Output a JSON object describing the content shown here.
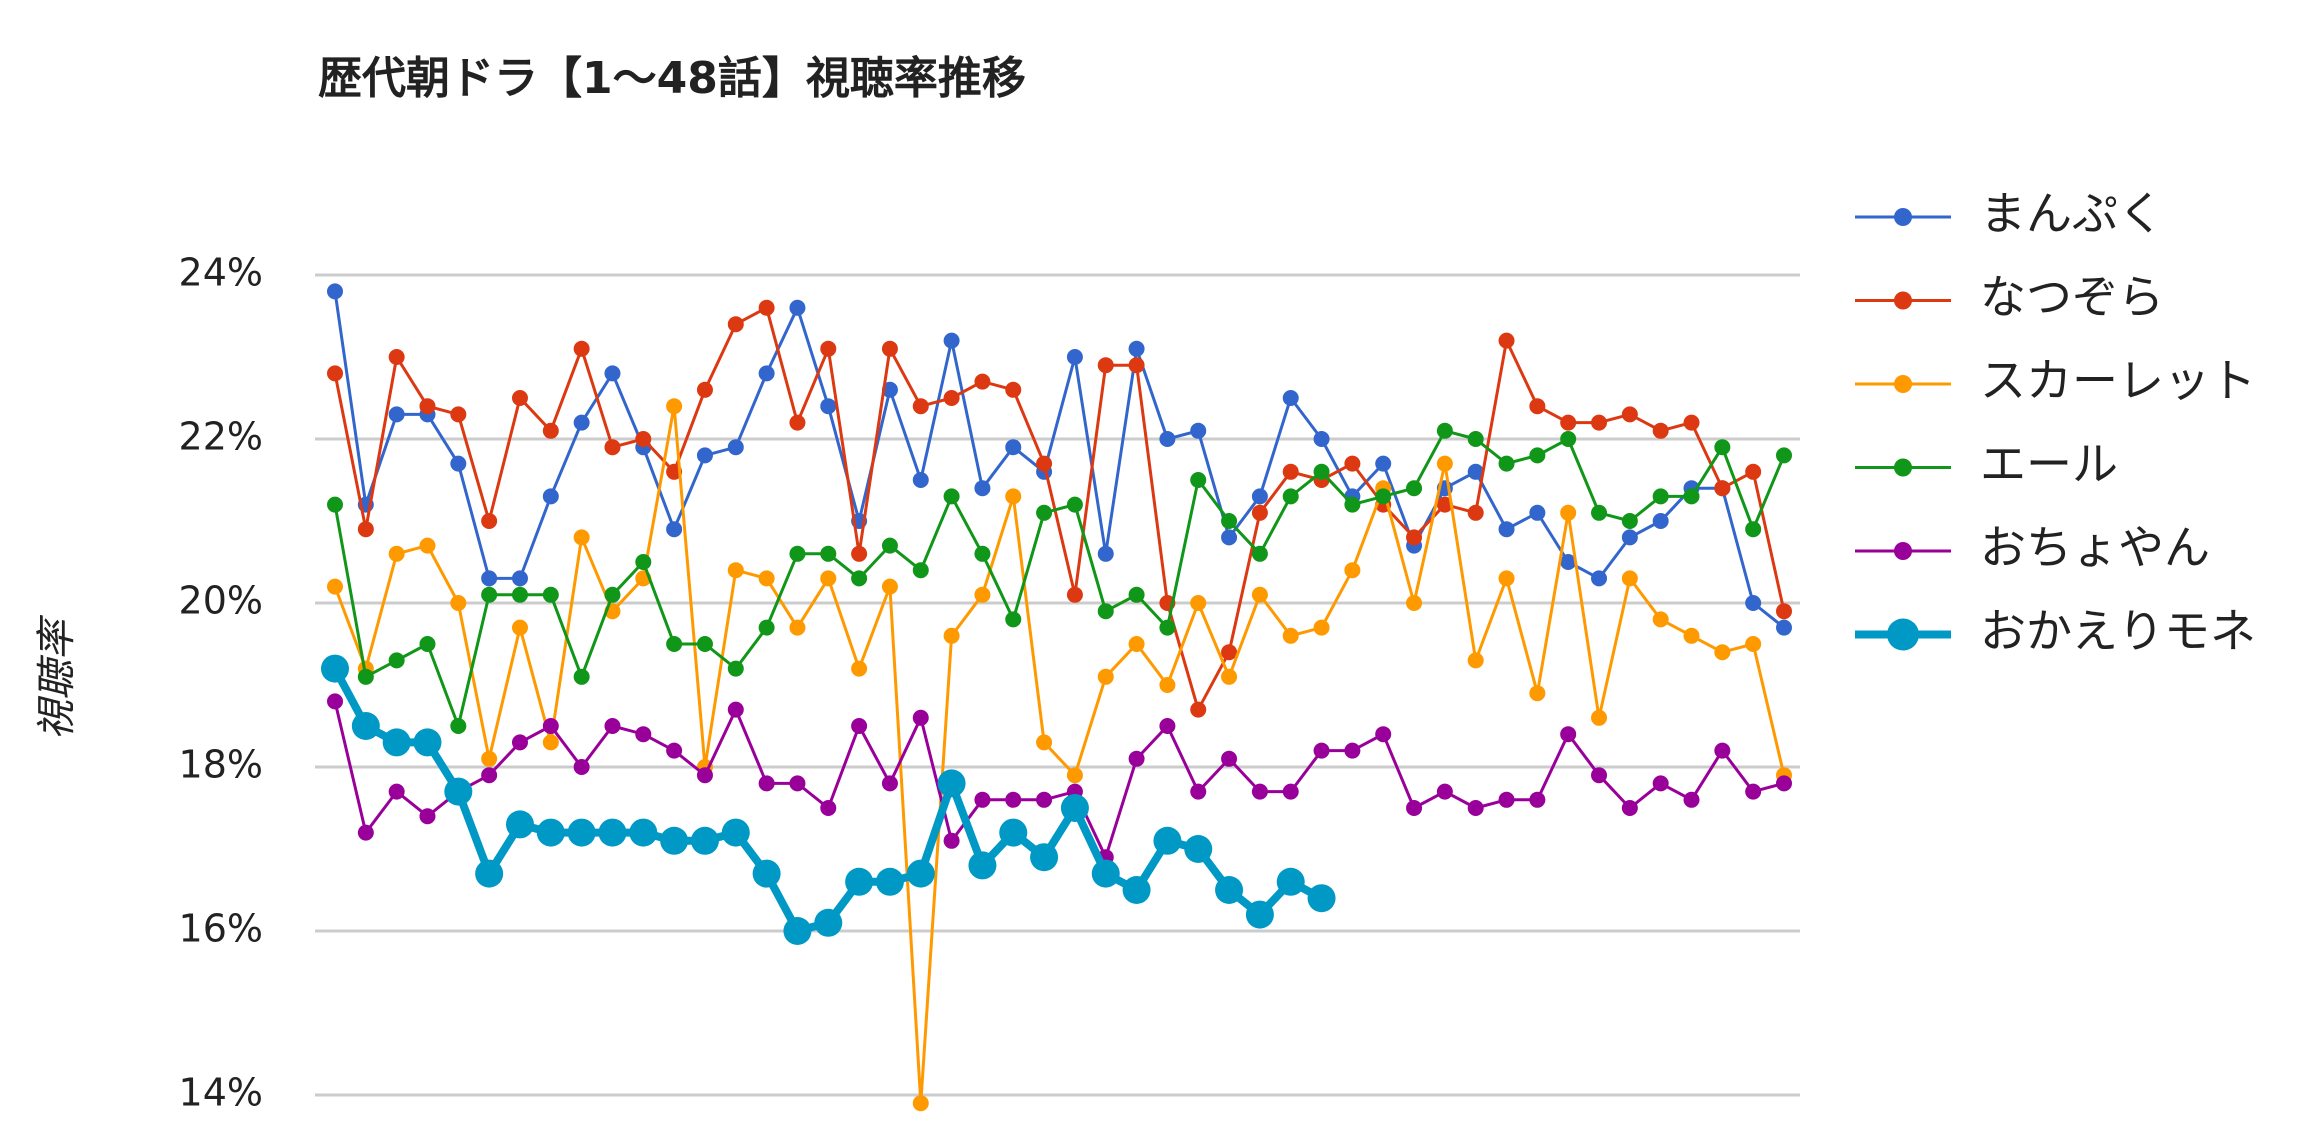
{
  "chart_data": {
    "type": "line",
    "title": "歴代朝ドラ【1〜48話】視聴率推移",
    "y_label": "視聴率",
    "ylim": [
      14,
      24
    ],
    "yticks": [
      {
        "value": 14,
        "label": "14%"
      },
      {
        "value": 16,
        "label": "16%"
      },
      {
        "value": 18,
        "label": "18%"
      },
      {
        "value": 20,
        "label": "20%"
      },
      {
        "value": 22,
        "label": "22%"
      },
      {
        "value": 24,
        "label": "24%"
      }
    ],
    "grid": true,
    "legend": "right",
    "series": [
      {
        "name": "まんぷく",
        "color": "#3366cc",
        "values": [
          23.8,
          21.2,
          22.3,
          22.3,
          21.7,
          20.3,
          20.3,
          21.3,
          22.2,
          22.8,
          21.9,
          20.9,
          21.8,
          21.9,
          22.8,
          23.6,
          22.4,
          21.0,
          22.6,
          21.5,
          23.2,
          21.4,
          21.9,
          21.6,
          23.0,
          20.6,
          23.1,
          22.0,
          22.1,
          20.8,
          21.3,
          22.5,
          22.0,
          21.3,
          21.7,
          20.7,
          21.4,
          21.6,
          20.9,
          21.1,
          20.5,
          20.3,
          20.8,
          21.0,
          21.4,
          21.4,
          20.0,
          19.7
        ]
      },
      {
        "name": "なつぞら",
        "color": "#dc3912",
        "values": [
          22.8,
          20.9,
          23.0,
          22.4,
          22.3,
          21.0,
          22.5,
          22.1,
          23.1,
          21.9,
          22.0,
          21.6,
          22.6,
          23.4,
          23.6,
          22.2,
          23.1,
          20.6,
          23.1,
          22.4,
          22.5,
          22.7,
          22.6,
          21.7,
          20.1,
          22.9,
          22.9,
          20.0,
          18.7,
          19.4,
          21.1,
          21.6,
          21.5,
          21.7,
          21.2,
          20.8,
          21.2,
          21.1,
          23.2,
          22.4,
          22.2,
          22.2,
          22.3,
          22.1,
          22.2,
          21.4,
          21.6,
          19.9
        ]
      },
      {
        "name": "スカーレット",
        "color": "#ff9900",
        "values": [
          20.2,
          19.2,
          20.6,
          20.7,
          20.0,
          18.1,
          19.7,
          18.3,
          20.8,
          19.9,
          20.3,
          22.4,
          18.0,
          20.4,
          20.3,
          19.7,
          20.3,
          19.2,
          20.2,
          13.9,
          19.6,
          20.1,
          21.3,
          18.3,
          17.9,
          19.1,
          19.5,
          19.0,
          20.0,
          19.1,
          20.1,
          19.6,
          19.7,
          20.4,
          21.4,
          20.0,
          21.7,
          19.3,
          20.3,
          18.9,
          21.1,
          18.6,
          20.3,
          19.8,
          19.6,
          19.4,
          19.5,
          17.9
        ]
      },
      {
        "name": "エール",
        "color": "#109618",
        "values": [
          21.2,
          19.1,
          19.3,
          19.5,
          18.5,
          20.1,
          20.1,
          20.1,
          19.1,
          20.1,
          20.5,
          19.5,
          19.5,
          19.2,
          19.7,
          20.6,
          20.6,
          20.3,
          20.7,
          20.4,
          21.3,
          20.6,
          19.8,
          21.1,
          21.2,
          19.9,
          20.1,
          19.7,
          21.5,
          21.0,
          20.6,
          21.3,
          21.6,
          21.2,
          21.3,
          21.4,
          22.1,
          22.0,
          21.7,
          21.8,
          22.0,
          21.1,
          21.0,
          21.3,
          21.3,
          21.9,
          20.9,
          21.8
        ]
      },
      {
        "name": "おちょやん",
        "color": "#990099",
        "values": [
          18.8,
          17.2,
          17.7,
          17.4,
          17.7,
          17.9,
          18.3,
          18.5,
          18.0,
          18.5,
          18.4,
          18.2,
          17.9,
          18.7,
          17.8,
          17.8,
          17.5,
          18.5,
          17.8,
          18.6,
          17.1,
          17.6,
          17.6,
          17.6,
          17.7,
          16.9,
          18.1,
          18.5,
          17.7,
          18.1,
          17.7,
          17.7,
          18.2,
          18.2,
          18.4,
          17.5,
          17.7,
          17.5,
          17.6,
          17.6,
          18.4,
          17.9,
          17.5,
          17.8,
          17.6,
          18.2,
          17.7,
          17.8
        ]
      },
      {
        "name": "おかえりモネ",
        "color": "#0099c6",
        "emphasis": true,
        "values": [
          19.2,
          18.5,
          18.3,
          18.3,
          17.7,
          16.7,
          17.3,
          17.2,
          17.2,
          17.2,
          17.2,
          17.1,
          17.1,
          17.2,
          16.7,
          16.0,
          16.1,
          16.6,
          16.6,
          16.7,
          17.8,
          16.8,
          17.2,
          16.9,
          17.5,
          16.7,
          16.5,
          17.1,
          17.0,
          16.5,
          16.2,
          16.6,
          16.4,
          null,
          null,
          null,
          null,
          null,
          null,
          null,
          null,
          null,
          null,
          null,
          null,
          null,
          null,
          null
        ]
      }
    ]
  }
}
